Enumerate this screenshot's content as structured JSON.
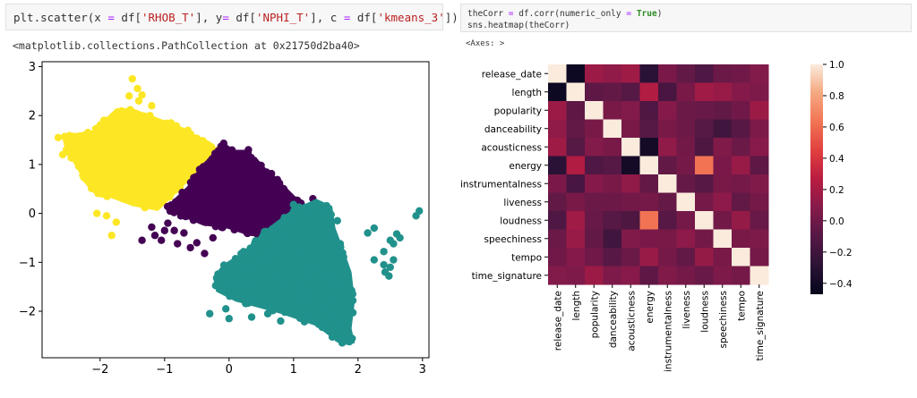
{
  "cells": {
    "left": {
      "code_parts": [
        "plt.scatter(x ",
        "=",
        " df[",
        "'RHOB_T'",
        "], y",
        "=",
        " df[",
        "'NPHI_T'",
        "], c ",
        "=",
        " df[",
        "'kmeans_3'",
        "])"
      ],
      "output": "<matplotlib.collections.PathCollection at 0x21750d2ba40>"
    },
    "right": {
      "line1_parts": [
        "theCorr ",
        "=",
        " df.corr(numeric_only ",
        "=",
        " ",
        "True",
        ")"
      ],
      "line2": "sns.heatmap(theCorr)",
      "output": "<Axes: >"
    }
  },
  "colors": {
    "cluster_yellow": "#fde725",
    "cluster_purple": "#440154",
    "cluster_teal": "#21918c"
  },
  "chart_data": [
    {
      "type": "scatter",
      "xlim": [
        -2.9,
        3.1
      ],
      "ylim": [
        -2.95,
        3.1
      ],
      "xticks": [
        -2,
        -1,
        0,
        1,
        2,
        3
      ],
      "yticks": [
        -2,
        -1,
        0,
        1,
        2,
        3
      ],
      "xtick_labels": [
        "−2",
        "−1",
        "0",
        "1",
        "2",
        "3"
      ],
      "ytick_labels": [
        "−2",
        "−1",
        "0",
        "1",
        "2",
        "3"
      ],
      "grid": false,
      "clusters": [
        {
          "color": "#fde725",
          "polygon": [
            [
              -2.6,
              1.6
            ],
            [
              -2.1,
              1.7
            ],
            [
              -1.95,
              1.9
            ],
            [
              -1.75,
              2.15
            ],
            [
              -1.5,
              2.15
            ],
            [
              -1.2,
              2.0
            ],
            [
              -0.7,
              1.75
            ],
            [
              -0.45,
              1.55
            ],
            [
              -0.2,
              1.3
            ],
            [
              0.0,
              1.35
            ],
            [
              -0.15,
              1.2
            ],
            [
              -0.4,
              0.95
            ],
            [
              -0.75,
              0.5
            ],
            [
              -1.1,
              0.05
            ],
            [
              -1.5,
              0.15
            ],
            [
              -1.8,
              0.3
            ],
            [
              -2.05,
              0.4
            ],
            [
              -2.2,
              0.55
            ],
            [
              -2.4,
              1.0
            ],
            [
              -2.55,
              1.35
            ]
          ],
          "outliers": [
            [
              -1.5,
              2.75
            ],
            [
              -1.42,
              2.55
            ],
            [
              -1.55,
              2.4
            ],
            [
              -1.35,
              2.42
            ],
            [
              -2.65,
              1.55
            ],
            [
              -2.55,
              1.57
            ],
            [
              -2.2,
              0.75
            ],
            [
              -2.05,
              0.0
            ],
            [
              -1.9,
              -0.05
            ],
            [
              -1.75,
              -0.18
            ],
            [
              -1.75,
              0.52
            ],
            [
              -1.4,
              2.3
            ],
            [
              -1.82,
              -0.45
            ],
            [
              -1.65,
              0.3
            ],
            [
              -2.35,
              1.35
            ],
            [
              -1.2,
              2.2
            ],
            [
              -0.9,
              1.85
            ],
            [
              -2.58,
              1.2
            ]
          ]
        },
        {
          "color": "#440154",
          "polygon": [
            [
              -0.45,
              0.95
            ],
            [
              -0.1,
              1.45
            ],
            [
              0.1,
              1.3
            ],
            [
              0.25,
              1.3
            ],
            [
              0.55,
              0.95
            ],
            [
              0.95,
              0.45
            ],
            [
              1.1,
              0.25
            ],
            [
              1.2,
              0.05
            ],
            [
              1.1,
              -0.1
            ],
            [
              0.85,
              -0.25
            ],
            [
              0.55,
              -0.5
            ],
            [
              0.3,
              -0.45
            ],
            [
              -0.05,
              -0.3
            ],
            [
              -0.4,
              -0.25
            ],
            [
              -0.85,
              0.0
            ],
            [
              -1.0,
              0.1
            ],
            [
              -0.85,
              0.3
            ],
            [
              -0.65,
              0.55
            ]
          ],
          "outliers": [
            [
              -1.35,
              -0.55
            ],
            [
              -1.0,
              -0.35
            ],
            [
              -1.15,
              -0.45
            ],
            [
              -1.05,
              -0.55
            ],
            [
              -0.85,
              -0.35
            ],
            [
              -0.95,
              -0.2
            ],
            [
              -0.8,
              -0.62
            ],
            [
              -0.6,
              -0.7
            ],
            [
              -0.38,
              -0.82
            ],
            [
              -1.2,
              -0.28
            ],
            [
              1.3,
              0.3
            ],
            [
              1.48,
              0.05
            ],
            [
              -0.25,
              -0.5
            ],
            [
              -0.7,
              -0.4
            ],
            [
              -0.5,
              -0.6
            ],
            [
              0.3,
              1.3
            ]
          ]
        },
        {
          "color": "#21918c",
          "polygon": [
            [
              0.55,
              -0.35
            ],
            [
              0.95,
              0.05
            ],
            [
              1.35,
              0.3
            ],
            [
              1.6,
              0.15
            ],
            [
              1.65,
              -0.3
            ],
            [
              1.75,
              -0.65
            ],
            [
              1.9,
              -1.2
            ],
            [
              1.95,
              -1.8
            ],
            [
              1.9,
              -2.35
            ],
            [
              1.95,
              -2.65
            ],
            [
              1.75,
              -2.7
            ],
            [
              1.35,
              -2.3
            ],
            [
              0.8,
              -2.05
            ],
            [
              0.1,
              -1.8
            ],
            [
              -0.2,
              -1.6
            ],
            [
              -0.25,
              -1.3
            ],
            [
              -0.1,
              -1.05
            ],
            [
              0.2,
              -0.8
            ]
          ],
          "outliers": [
            [
              1.0,
              0.18
            ],
            [
              1.5,
              -0.05
            ],
            [
              1.68,
              -0.15
            ],
            [
              2.15,
              -0.4
            ],
            [
              2.25,
              -0.3
            ],
            [
              2.6,
              -0.42
            ],
            [
              2.65,
              -0.5
            ],
            [
              2.55,
              -0.62
            ],
            [
              2.4,
              -0.78
            ],
            [
              2.55,
              -0.95
            ],
            [
              2.95,
              0.05
            ],
            [
              2.9,
              -0.05
            ],
            [
              2.25,
              -0.95
            ],
            [
              2.4,
              -1.05
            ],
            [
              2.5,
              -1.1
            ],
            [
              2.42,
              -1.2
            ],
            [
              2.48,
              -1.28
            ],
            [
              -0.3,
              -2.05
            ],
            [
              -0.05,
              -1.95
            ],
            [
              0.0,
              -2.15
            ],
            [
              0.35,
              -2.12
            ],
            [
              0.8,
              -2.2
            ],
            [
              0.6,
              -2.05
            ],
            [
              2.5,
              -0.55
            ]
          ]
        }
      ]
    },
    {
      "type": "heatmap",
      "labels": [
        "release_date",
        "length",
        "popularity",
        "danceability",
        "acousticness",
        "energy",
        "instrumentalness",
        "liveness",
        "loudness",
        "speechiness",
        "tempo",
        "time_signature"
      ],
      "matrix": [
        [
          1.0,
          -0.42,
          0.16,
          0.12,
          0.17,
          -0.3,
          0.04,
          -0.05,
          -0.13,
          -0.02,
          0.0,
          0.07
        ],
        [
          -0.42,
          1.0,
          -0.07,
          -0.05,
          -0.1,
          0.24,
          -0.16,
          0.03,
          0.18,
          0.15,
          0.08,
          0.05
        ],
        [
          0.16,
          -0.07,
          1.0,
          0.03,
          0.07,
          -0.13,
          0.08,
          -0.02,
          -0.03,
          -0.05,
          0.0,
          0.16
        ],
        [
          0.12,
          -0.05,
          0.03,
          1.0,
          0.03,
          -0.1,
          0.03,
          -0.01,
          -0.1,
          -0.19,
          -0.09,
          0.05
        ],
        [
          0.17,
          -0.1,
          0.07,
          0.03,
          1.0,
          -0.39,
          0.12,
          0.01,
          -0.14,
          0.06,
          -0.02,
          0.09
        ],
        [
          -0.3,
          0.24,
          -0.13,
          -0.1,
          -0.39,
          1.0,
          -0.05,
          0.02,
          0.63,
          0.04,
          0.15,
          -0.07
        ],
        [
          0.04,
          -0.16,
          0.08,
          0.03,
          0.12,
          -0.05,
          1.0,
          -0.04,
          -0.09,
          0.03,
          0.02,
          0.06
        ],
        [
          -0.05,
          0.03,
          -0.02,
          -0.01,
          0.01,
          0.02,
          -0.04,
          1.0,
          0.02,
          0.11,
          -0.05,
          0.02
        ],
        [
          -0.13,
          0.18,
          -0.03,
          -0.1,
          -0.14,
          0.63,
          -0.09,
          0.02,
          1.0,
          0.01,
          0.14,
          -0.03
        ],
        [
          -0.02,
          0.15,
          -0.05,
          -0.19,
          0.06,
          0.04,
          0.03,
          0.11,
          0.01,
          1.0,
          0.03,
          0.05
        ],
        [
          0.0,
          0.08,
          0.0,
          -0.09,
          -0.02,
          0.15,
          0.02,
          -0.05,
          0.14,
          0.03,
          1.0,
          0.02
        ],
        [
          0.07,
          0.05,
          0.16,
          0.05,
          0.09,
          -0.07,
          0.06,
          0.02,
          -0.03,
          0.05,
          0.02,
          1.0
        ]
      ],
      "colorbar": {
        "vmin": -0.47,
        "vmax": 1.0,
        "ticks": [
          1.0,
          0.8,
          0.6,
          0.4,
          0.2,
          0.0,
          -0.2,
          -0.4
        ],
        "tick_labels": [
          "1.0",
          "0.8",
          "0.6",
          "0.4",
          "0.2",
          "0.0",
          "−0.2",
          "−0.4"
        ]
      },
      "colormap": "rocket"
    }
  ]
}
